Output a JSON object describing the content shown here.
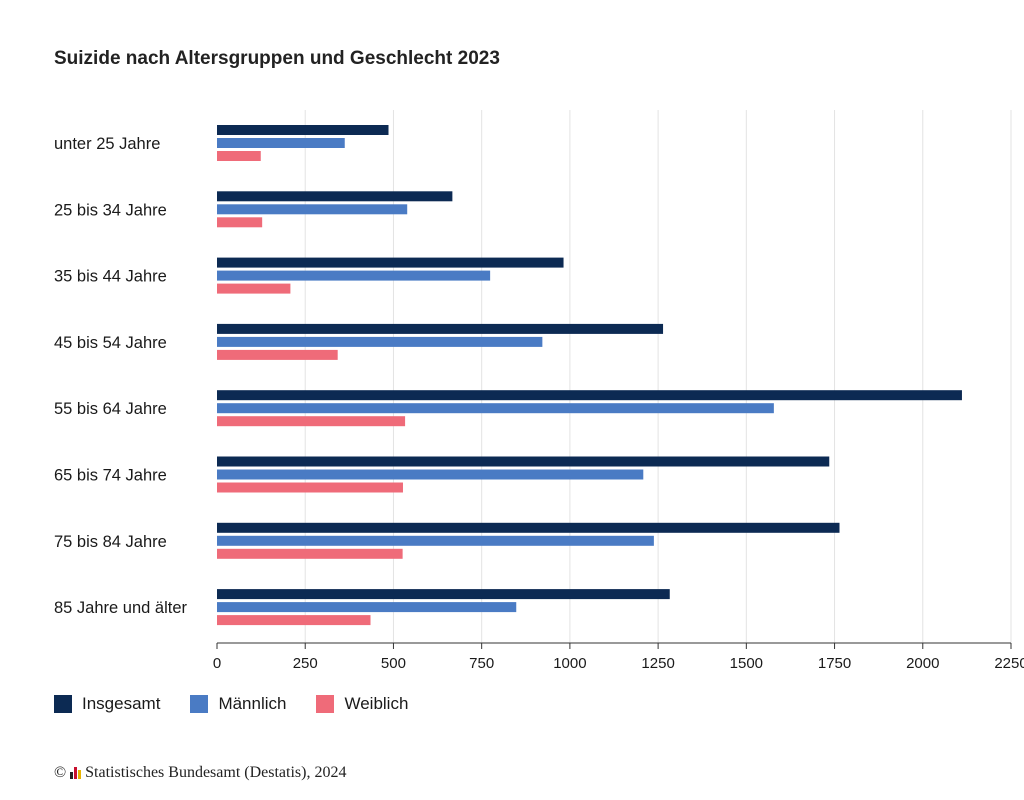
{
  "chart_data": {
    "type": "bar",
    "orientation": "horizontal",
    "title": "Suizide nach Altersgruppen und Geschlecht 2023",
    "categories": [
      "unter 25 Jahre",
      "25 bis 34 Jahre",
      "35 bis 44 Jahre",
      "45 bis 54 Jahre",
      "55 bis 64 Jahre",
      "65 bis 74 Jahre",
      "75 bis 84 Jahre",
      "85 Jahre und älter"
    ],
    "series": [
      {
        "name": "Insgesamt",
        "color": "#0c2a53",
        "values": [
          486,
          667,
          982,
          1264,
          2111,
          1735,
          1764,
          1283
        ]
      },
      {
        "name": "Männlich",
        "color": "#4a7bc4",
        "values": [
          362,
          539,
          774,
          922,
          1578,
          1208,
          1238,
          848
        ]
      },
      {
        "name": "Weiblich",
        "color": "#ef6b79",
        "values": [
          124,
          128,
          208,
          342,
          533,
          527,
          526,
          435
        ]
      }
    ],
    "xlim": [
      0,
      2250
    ],
    "xticks": [
      0,
      250,
      500,
      750,
      1000,
      1250,
      1500,
      1750,
      2000,
      2250
    ],
    "grid": true,
    "legend_position": "bottom-left"
  },
  "source": {
    "copyright_symbol": "©",
    "text": "Statistisches Bundesamt (Destatis), 2024"
  }
}
